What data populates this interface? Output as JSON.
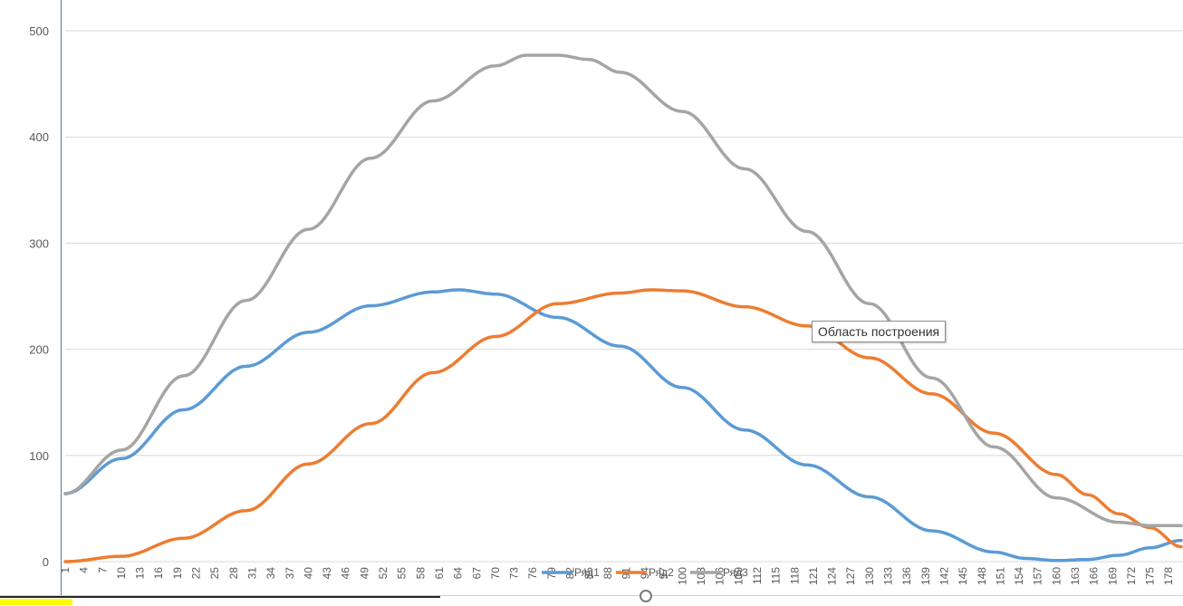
{
  "tooltip": {
    "text": "Область построения"
  },
  "colors": {
    "series1": "#5b9bd5",
    "series2": "#ed7d31",
    "series3": "#a5a5a5",
    "grid": "#d9d9d9",
    "axis_text": "#595959"
  },
  "chart_data": {
    "type": "line",
    "title": "",
    "xlabel": "",
    "ylabel": "",
    "ylim": [
      0,
      500
    ],
    "yticks": [
      0,
      100,
      200,
      300,
      400,
      500
    ],
    "xlim": [
      1,
      180
    ],
    "x_tick_step": 3,
    "grid": "horizontal",
    "legend": {
      "position": "bottom",
      "entries": [
        "Ряд1",
        "Ряд2",
        "Ряд3"
      ]
    },
    "series": [
      {
        "name": "Ряд1",
        "x": [
          1,
          10,
          20,
          30,
          40,
          50,
          60,
          64,
          70,
          80,
          90,
          100,
          110,
          120,
          130,
          140,
          150,
          155,
          160,
          165,
          170,
          175,
          180
        ],
        "values": [
          64,
          97,
          143,
          184,
          216,
          241,
          254,
          256,
          252,
          230,
          203,
          164,
          124,
          91,
          61,
          29,
          9,
          3,
          1,
          2,
          6,
          13,
          20
        ]
      },
      {
        "name": "Ряд2",
        "x": [
          1,
          10,
          20,
          30,
          40,
          50,
          60,
          70,
          80,
          90,
          95,
          100,
          110,
          120,
          130,
          140,
          150,
          160,
          165,
          170,
          175,
          180
        ],
        "values": [
          0,
          5,
          22,
          48,
          92,
          130,
          178,
          212,
          243,
          253,
          256,
          255,
          240,
          222,
          192,
          158,
          121,
          82,
          63,
          45,
          32,
          14
        ]
      },
      {
        "name": "Ряд3",
        "x": [
          1,
          10,
          20,
          30,
          40,
          50,
          60,
          70,
          75,
          80,
          85,
          90,
          100,
          110,
          120,
          130,
          140,
          150,
          160,
          170,
          175,
          180
        ],
        "values": [
          64,
          105,
          175,
          246,
          313,
          380,
          434,
          467,
          477,
          477,
          473,
          461,
          424,
          370,
          311,
          243,
          173,
          108,
          60,
          37,
          34,
          34
        ]
      }
    ]
  }
}
